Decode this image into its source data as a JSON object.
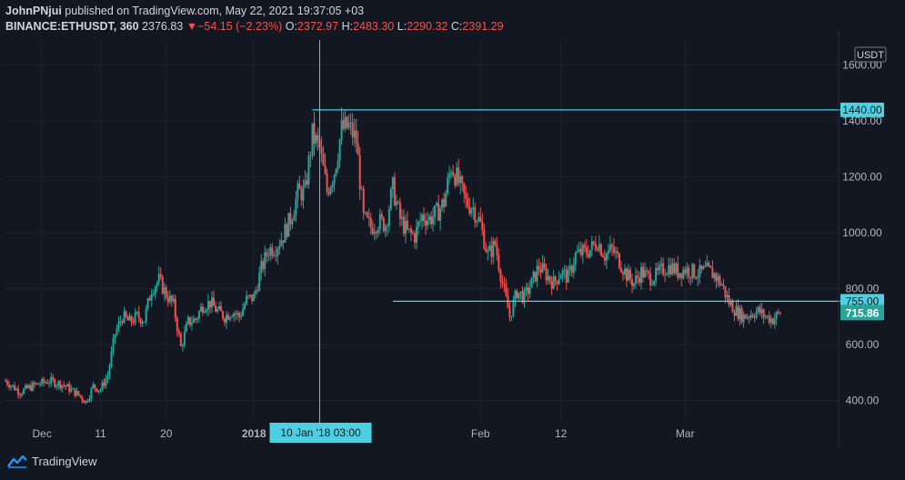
{
  "header": {
    "author": "JohnPNjui",
    "published_text": "published on TradingView.com, May 22, 2021 19:37:05 +03",
    "symbol": "BINANCE:ETHUSDT, 360",
    "last": "2376.83",
    "change_arrow": "▼",
    "change": "−54.15 (−2.23%)",
    "open_label": "O:",
    "open": "2372.97",
    "high_label": "H:",
    "high": "2483.30",
    "low_label": "L:",
    "low": "2290.32",
    "close_label": "C:",
    "close": "2391.29"
  },
  "footer": {
    "brand": "TradingView"
  },
  "colors": {
    "bg": "#131722",
    "up": "#26a69a",
    "down": "#ef5350",
    "line": "#4dd0e1",
    "axis_text": "#b2b5be"
  },
  "chart_data": {
    "type": "candlestick",
    "symbol": "BINANCE:ETHUSDT",
    "interval": "360",
    "y_unit": "USDT",
    "ylim": [
      330,
      1690
    ],
    "x_range": [
      "2017-11-28",
      "2018-03-22"
    ],
    "y_ticks": [
      400,
      600,
      800,
      1000,
      1200,
      1400,
      1600
    ],
    "y_tick_labels": [
      "400.00",
      "600.00",
      "800.00",
      "1000.00",
      "1200.00",
      "1400.00",
      "1600.00"
    ],
    "x_ticks": [
      {
        "date": "2017-12-03",
        "label": "Dec"
      },
      {
        "date": "2017-12-11",
        "label": "11"
      },
      {
        "date": "2017-12-20",
        "label": "20"
      },
      {
        "date": "2018-01-01",
        "label": "2018"
      },
      {
        "date": "2018-02-01",
        "label": "Feb"
      },
      {
        "date": "2018-02-12",
        "label": "12"
      },
      {
        "date": "2018-03-01",
        "label": "Mar"
      }
    ],
    "closes_approx": [
      [
        "2017-11-28",
        470
      ],
      [
        "2017-11-30",
        430
      ],
      [
        "2017-12-02",
        455
      ],
      [
        "2017-12-04",
        470
      ],
      [
        "2017-12-06",
        455
      ],
      [
        "2017-12-08",
        420
      ],
      [
        "2017-12-09",
        395
      ],
      [
        "2017-12-10",
        450
      ],
      [
        "2017-12-11",
        440
      ],
      [
        "2017-12-12",
        490
      ],
      [
        "2017-12-13",
        640
      ],
      [
        "2017-12-14",
        700
      ],
      [
        "2017-12-15",
        680
      ],
      [
        "2017-12-16",
        700
      ],
      [
        "2017-12-17",
        690
      ],
      [
        "2017-12-18",
        800
      ],
      [
        "2017-12-19",
        830
      ],
      [
        "2017-12-20",
        780
      ],
      [
        "2017-12-21",
        740
      ],
      [
        "2017-12-22",
        590
      ],
      [
        "2017-12-23",
        680
      ],
      [
        "2017-12-24",
        690
      ],
      [
        "2017-12-25",
        740
      ],
      [
        "2017-12-26",
        750
      ],
      [
        "2017-12-27",
        720
      ],
      [
        "2017-12-28",
        700
      ],
      [
        "2017-12-29",
        720
      ],
      [
        "2017-12-30",
        700
      ],
      [
        "2017-12-31",
        760
      ],
      [
        "2018-01-01",
        770
      ],
      [
        "2018-01-02",
        870
      ],
      [
        "2018-01-03",
        940
      ],
      [
        "2018-01-04",
        950
      ],
      [
        "2018-01-05",
        990
      ],
      [
        "2018-01-06",
        1050
      ],
      [
        "2018-01-07",
        1140
      ],
      [
        "2018-01-08",
        1150
      ],
      [
        "2018-01-09",
        1350
      ],
      [
        "2018-01-10",
        1300
      ],
      [
        "2018-01-11",
        1150
      ],
      [
        "2018-01-12",
        1220
      ],
      [
        "2018-01-13",
        1370
      ],
      [
        "2018-01-14",
        1380
      ],
      [
        "2018-01-15",
        1330
      ],
      [
        "2018-01-16",
        1050
      ],
      [
        "2018-01-17",
        1020
      ],
      [
        "2018-01-18",
        1040
      ],
      [
        "2018-01-19",
        1030
      ],
      [
        "2018-01-20",
        1160
      ],
      [
        "2018-01-21",
        1050
      ],
      [
        "2018-01-22",
        1000
      ],
      [
        "2018-01-23",
        990
      ],
      [
        "2018-01-24",
        1060
      ],
      [
        "2018-01-25",
        1050
      ],
      [
        "2018-01-26",
        1070
      ],
      [
        "2018-01-27",
        1110
      ],
      [
        "2018-01-28",
        1240
      ],
      [
        "2018-01-29",
        1180
      ],
      [
        "2018-01-30",
        1110
      ],
      [
        "2018-01-31",
        1090
      ],
      [
        "2018-02-01",
        1030
      ],
      [
        "2018-02-02",
        920
      ],
      [
        "2018-02-03",
        960
      ],
      [
        "2018-02-04",
        820
      ],
      [
        "2018-02-05",
        700
      ],
      [
        "2018-02-06",
        790
      ],
      [
        "2018-02-07",
        770
      ],
      [
        "2018-02-08",
        820
      ],
      [
        "2018-02-09",
        880
      ],
      [
        "2018-02-10",
        850
      ],
      [
        "2018-02-11",
        820
      ],
      [
        "2018-02-12",
        860
      ],
      [
        "2018-02-13",
        840
      ],
      [
        "2018-02-14",
        920
      ],
      [
        "2018-02-15",
        930
      ],
      [
        "2018-02-16",
        940
      ],
      [
        "2018-02-17",
        970
      ],
      [
        "2018-02-18",
        920
      ],
      [
        "2018-02-19",
        940
      ],
      [
        "2018-02-20",
        900
      ],
      [
        "2018-02-21",
        850
      ],
      [
        "2018-02-22",
        820
      ],
      [
        "2018-02-23",
        860
      ],
      [
        "2018-02-24",
        840
      ],
      [
        "2018-02-25",
        845
      ],
      [
        "2018-02-26",
        870
      ],
      [
        "2018-02-27",
        880
      ],
      [
        "2018-02-28",
        860
      ],
      [
        "2018-03-01",
        870
      ],
      [
        "2018-03-02",
        860
      ],
      [
        "2018-03-03",
        855
      ],
      [
        "2018-03-04",
        865
      ],
      [
        "2018-03-05",
        850
      ],
      [
        "2018-03-06",
        815
      ],
      [
        "2018-03-07",
        750
      ],
      [
        "2018-03-08",
        720
      ],
      [
        "2018-03-09",
        700
      ],
      [
        "2018-03-10",
        710
      ],
      [
        "2018-03-11",
        720
      ],
      [
        "2018-03-12",
        700
      ],
      [
        "2018-03-13",
        690
      ],
      [
        "2018-03-14",
        715
      ]
    ],
    "annotations": {
      "horizontal_lines": [
        {
          "value": 1440,
          "label": "1440.00",
          "from": "2018-01-09"
        },
        {
          "value": 755,
          "label": "755.00",
          "from": "2018-01-20"
        }
      ],
      "last_price": {
        "value": 715.86,
        "label": "715.86"
      },
      "crosshair": {
        "date": "2018-01-10",
        "label": "10 Jan '18   03:00"
      },
      "currency_badge": "USDT"
    }
  }
}
